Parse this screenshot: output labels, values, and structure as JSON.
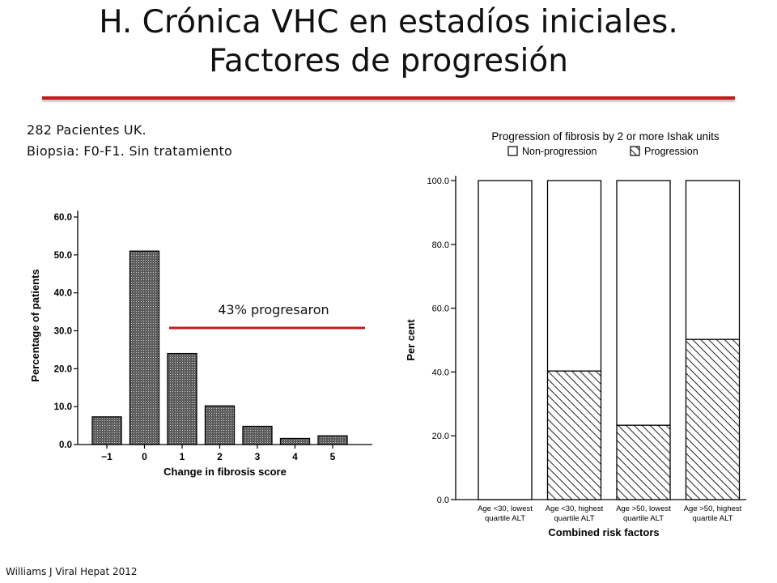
{
  "slide": {
    "title_line1": "H. Crónica VHC en estadíos iniciales.",
    "title_line2": "Factores de progresión",
    "info_line1": "282 Pacientes UK.",
    "info_line2": "Biopsia: F0-F1. Sin tratamiento",
    "annotation": "43% progresaron",
    "citation": "Williams J Viral Hepat 2012",
    "accent_color": "#c41a1a"
  },
  "chart_data": [
    {
      "type": "bar",
      "categories": [
        "−1",
        "0",
        "1",
        "2",
        "3",
        "4",
        "5"
      ],
      "values": [
        7.3,
        51.0,
        24.0,
        10.2,
        4.8,
        1.6,
        2.3
      ],
      "xlabel": "Change in fibrosis score",
      "ylabel": "Percentage of patients",
      "ylim": [
        0,
        60
      ],
      "yticks": [
        "0.0",
        "10.0",
        "20.0",
        "30.0",
        "40.0",
        "50.0",
        "60.0"
      ],
      "fill": "crosshatch dark grey"
    },
    {
      "type": "bar",
      "stacked": true,
      "title": "Progression of fibrosis by 2 or more Ishak units",
      "legend": [
        "Non-progression",
        "Progression"
      ],
      "categories": [
        [
          "Age <30, lowest",
          "quartile ALT"
        ],
        [
          "Age <30, highest",
          "quartile ALT"
        ],
        [
          "Age >50, lowest",
          "quartile ALT"
        ],
        [
          "Age >50, highest",
          "quartile ALT"
        ]
      ],
      "series": [
        {
          "name": "Progression",
          "values": [
            0,
            40.3,
            23.3,
            50.2
          ]
        },
        {
          "name": "Non-progression",
          "values": [
            100,
            59.7,
            76.7,
            49.8
          ]
        }
      ],
      "xlabel": "Combined risk factors",
      "ylabel": "Per cent",
      "ylim": [
        0,
        100
      ],
      "yticks": [
        "0.0",
        "20.0",
        "40.0",
        "60.0",
        "80.0",
        "100.0"
      ]
    }
  ]
}
